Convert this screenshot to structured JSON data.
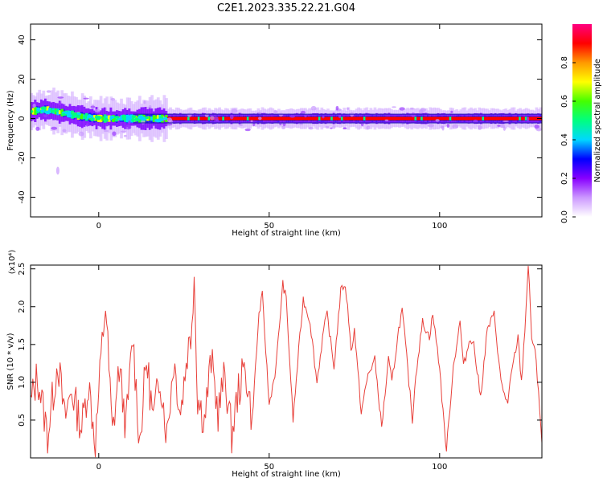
{
  "title": "C2E1.2023.335.22.21.G04",
  "chart_data": [
    {
      "type": "heatmap",
      "xlabel": "Height of straight line (km)",
      "ylabel": "Frequency (Hz)",
      "xlim": [
        -20,
        130
      ],
      "ylim": [
        -50,
        48
      ],
      "xticks": [
        0,
        50,
        100
      ],
      "yticks": [
        -40,
        -20,
        0,
        20,
        40
      ],
      "ridge": [
        {
          "x": -20,
          "y": 3.5,
          "amp": 0.55
        },
        {
          "x": -17,
          "y": 4.5,
          "amp": 0.6
        },
        {
          "x": -14,
          "y": 4.0,
          "amp": 0.55
        },
        {
          "x": -11,
          "y": 3.0,
          "amp": 0.5
        },
        {
          "x": -8,
          "y": 2.0,
          "amp": 0.45
        },
        {
          "x": -5,
          "y": 1.0,
          "amp": 0.45
        },
        {
          "x": -2,
          "y": 0.5,
          "amp": 0.45
        },
        {
          "x": 0,
          "y": 0.0,
          "amp": 0.5
        },
        {
          "x": 5,
          "y": 0.0,
          "amp": 0.55
        },
        {
          "x": 10,
          "y": 0.0,
          "amp": 0.55
        },
        {
          "x": 15,
          "y": 0.0,
          "amp": 0.6
        },
        {
          "x": 18,
          "y": 0.0,
          "amp": 0.8
        },
        {
          "x": 20,
          "y": 0.0,
          "amp": 0.9
        },
        {
          "x": 130,
          "y": 0.0,
          "amp": 0.9
        }
      ],
      "colorbar": {
        "label": "Normalized spectral amplitude",
        "range": [
          0,
          1
        ],
        "ticks": [
          0.0,
          0.2,
          0.4,
          0.6,
          0.8
        ],
        "colors": [
          "#ffffff",
          "#cc99ff",
          "#8800ff",
          "#0000ff",
          "#00d7ff",
          "#00ff80",
          "#44ff00",
          "#ffff00",
          "#ff9900",
          "#ff0000",
          "#ff0080"
        ]
      }
    },
    {
      "type": "line",
      "xlabel": "Height of straight line (km)",
      "ylabel": "SNR (10 * v/v)",
      "ymult": "(x10⁴)",
      "xlim": [
        -20,
        130
      ],
      "ylim": [
        0,
        2.55
      ],
      "xticks": [
        0,
        50,
        100
      ],
      "yticks": [
        0.5,
        1.0,
        1.5,
        2.0,
        2.5
      ],
      "series": [
        {
          "color": "#e8403a",
          "x": [
            -20,
            -18,
            -15,
            -12,
            -10,
            -8,
            -5,
            -3,
            -1,
            1,
            2,
            4,
            6,
            8,
            10,
            12,
            14,
            16,
            18,
            20,
            22,
            24,
            26,
            27,
            28,
            29,
            31,
            33,
            35,
            37,
            39,
            41,
            43,
            45,
            47,
            48,
            50,
            52,
            54,
            55,
            57,
            59,
            60,
            62,
            64,
            66,
            67,
            69,
            71,
            72,
            73,
            74,
            75,
            77,
            79,
            81,
            83,
            85,
            86,
            88,
            89,
            90,
            92,
            93,
            95,
            97,
            98,
            100,
            101,
            102,
            104,
            106,
            107,
            109,
            110,
            112,
            114,
            116,
            118,
            120,
            121,
            123,
            124,
            125,
            126,
            127,
            128,
            129,
            130
          ],
          "values": [
            0.7,
            1.1,
            0.3,
            1.3,
            0.5,
            0.9,
            0.4,
            1.0,
            0.2,
            1.5,
            2.05,
            0.3,
            1.2,
            0.4,
            1.6,
            0.2,
            1.3,
            0.5,
            1.1,
            0.3,
            1.3,
            0.6,
            1.4,
            1.6,
            2.45,
            0.8,
            0.5,
            1.3,
            0.6,
            1.1,
            0.3,
            0.9,
            1.2,
            0.5,
            1.9,
            2.15,
            0.7,
            1.2,
            2.3,
            2.1,
            0.5,
            1.6,
            2.1,
            1.8,
            1.0,
            1.7,
            1.9,
            1.2,
            2.2,
            2.3,
            2.05,
            1.4,
            1.7,
            0.6,
            1.1,
            1.3,
            0.4,
            1.3,
            1.0,
            1.7,
            1.95,
            1.5,
            0.5,
            1.1,
            1.8,
            1.6,
            1.9,
            1.2,
            0.6,
            0.1,
            1.2,
            1.8,
            1.2,
            1.6,
            1.5,
            0.8,
            1.7,
            1.9,
            1.0,
            0.7,
            1.1,
            1.6,
            1.0,
            1.7,
            2.55,
            1.6,
            1.4,
            0.9,
            0.2
          ]
        }
      ]
    }
  ]
}
